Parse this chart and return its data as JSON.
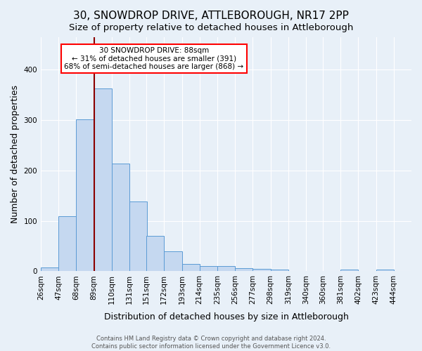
{
  "title": "30, SNOWDROP DRIVE, ATTLEBOROUGH, NR17 2PP",
  "subtitle": "Size of property relative to detached houses in Attleborough",
  "xlabel": "Distribution of detached houses by size in Attleborough",
  "ylabel": "Number of detached properties",
  "bar_values": [
    8,
    109,
    301,
    362,
    213,
    138,
    70,
    40,
    14,
    11,
    10,
    6,
    5,
    3,
    0,
    0,
    0,
    4,
    0,
    3
  ],
  "bar_labels": [
    "26sqm",
    "47sqm",
    "68sqm",
    "89sqm",
    "110sqm",
    "131sqm",
    "151sqm",
    "172sqm",
    "193sqm",
    "214sqm",
    "235sqm",
    "256sqm",
    "277sqm",
    "298sqm",
    "319sqm",
    "340sqm",
    "360sqm",
    "381sqm",
    "402sqm",
    "423sqm",
    "444sqm"
  ],
  "bar_color": "#c5d8f0",
  "bar_edge_color": "#5b9bd5",
  "vline_color": "#8b0000",
  "annotation_text": "30 SNOWDROP DRIVE: 88sqm\n← 31% of detached houses are smaller (391)\n68% of semi-detached houses are larger (868) →",
  "annotation_box_facecolor": "white",
  "annotation_box_edgecolor": "red",
  "footer": "Contains HM Land Registry data © Crown copyright and database right 2024.\nContains public sector information licensed under the Government Licence v3.0.",
  "ylim_max": 465,
  "background_color": "#e8f0f8",
  "grid_color": "white",
  "title_fontsize": 11,
  "subtitle_fontsize": 9.5,
  "axis_label_fontsize": 9,
  "tick_fontsize": 7.5,
  "footer_fontsize": 6,
  "bin_edges": [
    26,
    47,
    68,
    89,
    110,
    131,
    151,
    172,
    193,
    214,
    235,
    256,
    277,
    298,
    319,
    340,
    360,
    381,
    402,
    423,
    444
  ],
  "bin_width": 21
}
